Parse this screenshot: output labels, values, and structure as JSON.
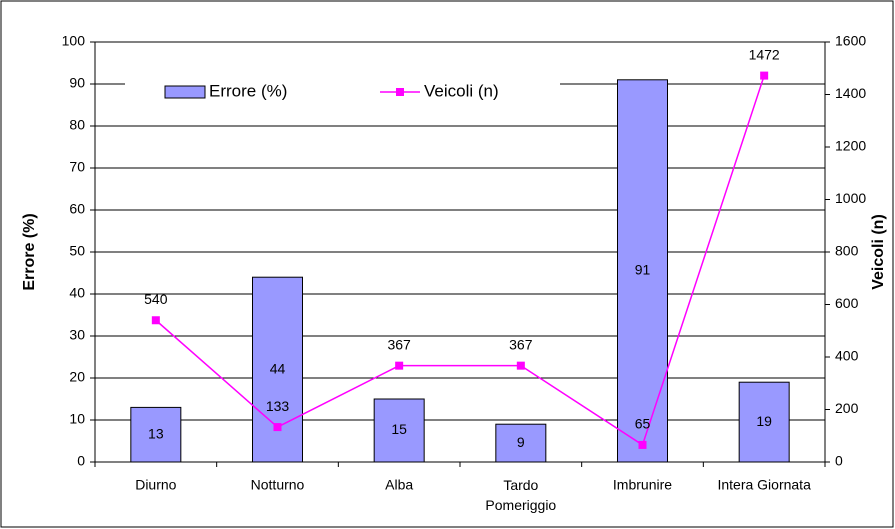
{
  "chart_data": {
    "type": "bar_line",
    "categories": [
      "Diurno",
      "Notturno",
      "Alba",
      "Tardo Pomeriggio",
      "Imbrunire",
      "Intera Giornata"
    ],
    "series": [
      {
        "name": "Errore (%)",
        "type": "bar",
        "color": "#9999ff",
        "values": [
          13,
          44,
          15,
          9,
          91,
          19
        ]
      },
      {
        "name": "Veicoli (n)",
        "type": "line",
        "color": "#ff00ff",
        "axis": "y2",
        "values": [
          540,
          133,
          367,
          367,
          65,
          1472
        ]
      }
    ],
    "ylabel": "Errore (%)",
    "y2label": "Veicoli (n)",
    "ylim": [
      0,
      100
    ],
    "yticks": [
      0,
      10,
      20,
      30,
      40,
      50,
      60,
      70,
      80,
      90,
      100
    ],
    "y2lim": [
      0,
      1600
    ],
    "y2ticks": [
      0,
      200,
      400,
      600,
      800,
      1000,
      1200,
      1400,
      1600
    ],
    "grid": true,
    "legend": "top"
  }
}
